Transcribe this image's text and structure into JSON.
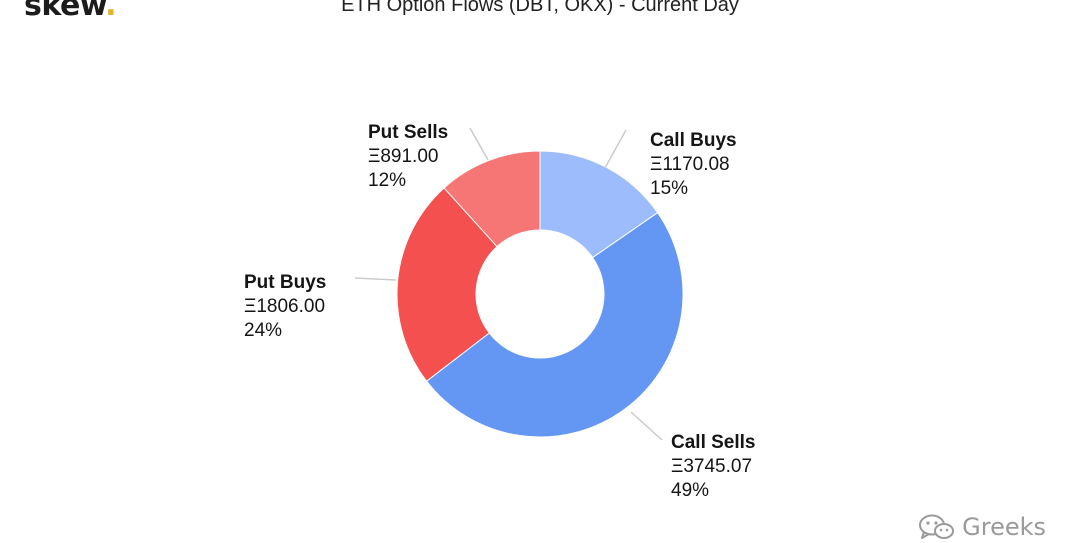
{
  "brand": {
    "name": "skew",
    "dot": "."
  },
  "watermark": {
    "text": "Greeks",
    "icon": "wechat-icon"
  },
  "colors": {
    "call_buys": "#9dbcfc",
    "call_sells": "#6497f4",
    "put_buys": "#f45050",
    "put_sells": "#f67676",
    "connector": "#cccccc"
  },
  "chart_data": {
    "type": "pie",
    "variant": "donut",
    "title": "ETH Option Flows (DBT, OKX) - Current Day",
    "slices": [
      {
        "key": "call_buys",
        "name": "Call Buys",
        "value": 1170.08,
        "value_label": "Ξ1170.08",
        "percent_label": "15%"
      },
      {
        "key": "call_sells",
        "name": "Call Sells",
        "value": 3745.07,
        "value_label": "Ξ3745.07",
        "percent_label": "49%"
      },
      {
        "key": "put_buys",
        "name": "Put Buys",
        "value": 1806.0,
        "value_label": "Ξ1806.00",
        "percent_label": "24%"
      },
      {
        "key": "put_sells",
        "name": "Put Sells",
        "value": 891.0,
        "value_label": "Ξ891.00",
        "percent_label": "12%"
      }
    ],
    "legend": "none",
    "data_labels": "outside"
  }
}
